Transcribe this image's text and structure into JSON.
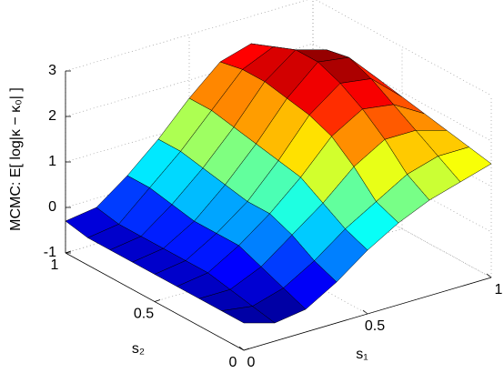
{
  "chart_data": {
    "type": "surface",
    "xlabel": "s₁",
    "ylabel": "s₂",
    "zlabel": "MCMC: E[ log|κ − κ₀| ]",
    "x": [
      0,
      0.125,
      0.25,
      0.375,
      0.5,
      0.625,
      0.75,
      0.875,
      1
    ],
    "y": [
      0,
      0.125,
      0.25,
      0.375,
      0.5,
      0.625,
      0.75,
      0.875,
      1
    ],
    "z": [
      [
        -0.4,
        -0.6,
        -0.5,
        -0.1,
        0.4,
        0.8,
        1.1,
        1.3,
        1.5
      ],
      [
        -0.4,
        -0.5,
        -0.3,
        0.1,
        0.6,
        1.0,
        1.4,
        1.6,
        1.6
      ],
      [
        -0.4,
        -0.4,
        -0.1,
        0.4,
        0.9,
        1.5,
        1.9,
        1.9,
        1.7
      ],
      [
        -0.4,
        -0.3,
        0.1,
        0.6,
        1.2,
        1.9,
        2.3,
        2.2,
        1.8
      ],
      [
        -0.4,
        -0.3,
        0.1,
        0.6,
        1.3,
        2.1,
        2.6,
        2.5,
        1.9
      ],
      [
        -0.4,
        -0.3,
        0.1,
        0.7,
        1.4,
        2.2,
        2.8,
        2.7,
        2.0
      ],
      [
        -0.4,
        -0.3,
        0.2,
        0.8,
        1.5,
        2.3,
        2.8,
        2.6,
        1.9
      ],
      [
        -0.4,
        -0.3,
        0.3,
        0.9,
        1.6,
        2.3,
        2.6,
        2.3,
        1.8
      ],
      [
        -0.3,
        -0.2,
        0.3,
        0.9,
        1.6,
        2.2,
        2.4,
        2.1,
        1.7
      ]
    ],
    "colormap": "jet",
    "xlim": [
      0,
      1
    ],
    "xticks": [
      0,
      0.5,
      1
    ],
    "ylim": [
      0,
      1
    ],
    "yticks": [
      0,
      0.5,
      1
    ],
    "zlim": [
      -1,
      3
    ],
    "zticks": [
      -1,
      0,
      1,
      2,
      3
    ],
    "grid": true
  }
}
